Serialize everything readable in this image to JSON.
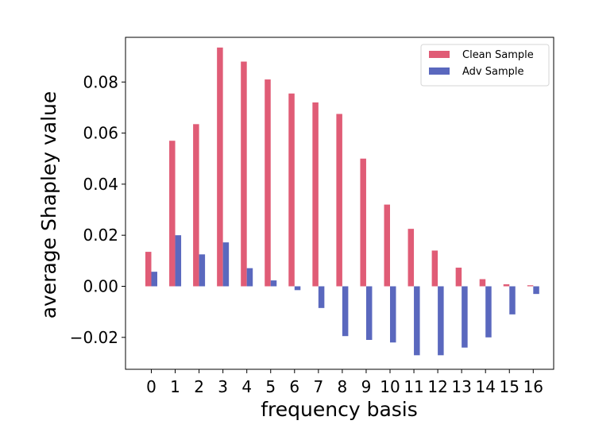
{
  "chart_data": {
    "type": "bar",
    "title": "",
    "xlabel": "frequency basis",
    "ylabel": "average Shapley value",
    "categories": [
      "0",
      "1",
      "2",
      "3",
      "4",
      "5",
      "6",
      "7",
      "8",
      "9",
      "10",
      "11",
      "12",
      "13",
      "14",
      "15",
      "16"
    ],
    "series": [
      {
        "name": "Clean Sample",
        "color": "#e05c76",
        "values": [
          0.0135,
          0.057,
          0.0635,
          0.0935,
          0.088,
          0.081,
          0.0755,
          0.072,
          0.0675,
          0.05,
          0.032,
          0.0225,
          0.014,
          0.0073,
          0.0028,
          0.0008,
          0.0004
        ]
      },
      {
        "name": "Adv Sample",
        "color": "#5a68be",
        "values": [
          0.0057,
          0.02,
          0.0125,
          0.0172,
          0.0071,
          0.0023,
          -0.0015,
          -0.0085,
          -0.0195,
          -0.021,
          -0.022,
          -0.027,
          -0.027,
          -0.024,
          -0.02,
          -0.011,
          -0.003
        ]
      }
    ],
    "ylim": [
      -0.0325,
      0.0975
    ],
    "yticks": [
      -0.02,
      0.0,
      0.02,
      0.04,
      0.06,
      0.08
    ],
    "ytick_labels": [
      "−0.02",
      "0.00",
      "0.02",
      "0.04",
      "0.06",
      "0.08"
    ],
    "legend_position": "top-right",
    "grid": false
  }
}
